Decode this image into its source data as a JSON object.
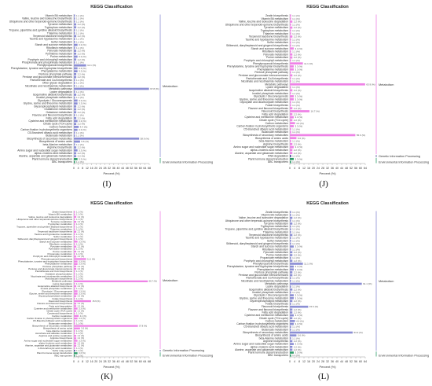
{
  "panels": [
    {
      "id": "I",
      "label": "(I)",
      "title": "KEGG Classification",
      "xlabel": "Percent (%)",
      "xlim": [
        0,
        68
      ],
      "xticks": [
        0,
        4,
        8,
        12,
        16,
        20,
        24,
        28,
        32,
        36,
        40,
        44,
        48,
        52,
        56,
        60,
        64,
        68
      ],
      "bar_color_primary": "#8c8fd4",
      "bar_color_secondary": "#2f9d6a",
      "groups": [
        {
          "name": "Metabolism",
          "color": "#8c8fd4",
          "categories": [
            "Vitamin B6 metabolism",
            "Valine, leucine and isoleucine biosynthesis",
            "Ubiquinone and other terpenoid-quinone biosynthesis",
            "Tyrosine metabolism",
            "Tryptophan metabolism",
            "Tropane, piperidine and pyridine alkaloid biosynthesis",
            "Thiamine metabolism",
            "Terpenoid backbone biosynthesis",
            "Taurine and hypotaurine metabolism",
            "Sulfur metabolism",
            "Starch and sucrose metabolism",
            "Riboflavin metabolism",
            "Pyruvate metabolism",
            "Pyrimidine metabolism",
            "Purine metabolism",
            "Porphyrin and chlorophyll metabolism",
            "Phosphonate and phosphinate metabolism",
            "Phenylpropanoid biosynthesis",
            "Phenylalanine, tyrosine and tryptophan biosynthesis",
            "Phenylalanine metabolism",
            "Pentose phosphate pathway",
            "Pentose and glucuronate interconversions",
            "Pantothenate and CoA biosynthesis",
            "Other glycan degradation",
            "Nicotinate and nicotinamide metabolism",
            "Metabolic pathways",
            "Lysine degradation",
            "Isoquinoline alkaloid biosynthesis",
            "Inositol phosphate metabolism",
            "Glycolysis / Gluconeogenesis",
            "Glycine, serine and threonine metabolism",
            "Glycerophospholipid metabolism",
            "Glutathione metabolism",
            "Galactose metabolism",
            "Flavone and flavonol biosynthesis",
            "Fatty acid degradation",
            "Cysteine and methionine metabolism",
            "Citrate cycle (TCA cycle)",
            "Carbon metabolism",
            "Carbon fixation in photosynthetic organisms",
            "C5-Branched dibasic acid metabolism",
            "Butanoate metabolism",
            "Biosynthesis of secondary metabolites",
            "Biosynthesis of amino acids",
            "beta-Alanine metabolism",
            "Arginine biosynthesis",
            "Amino sugar and nucleotide sugar metabolism",
            "alpha-Linolenic acid metabolism",
            "Alanine, aspartate and glutamate metabolism"
          ],
          "values": [
            1.1,
            1.1,
            1.1,
            2.2,
            2.2,
            1.1,
            1.1,
            2.2,
            1.1,
            1.1,
            3.3,
            1.1,
            2.2,
            2.2,
            3.3,
            2.2,
            1.1,
            11.1,
            3.3,
            3.3,
            2.2,
            2.2,
            1.1,
            1.1,
            1.1,
            67.8,
            1.1,
            2.2,
            1.1,
            3.3,
            3.3,
            2.2,
            2.2,
            2.2,
            1.1,
            2.2,
            3.3,
            2.2,
            4.4,
            3.3,
            1.1,
            1.1,
            58.9,
            5.6,
            1.1,
            2.2,
            3.3,
            2.2,
            2.2
          ]
        },
        {
          "name": "Environmental Information Processing",
          "color": "#2f9d6a",
          "categories": [
            "Plant hormone signal transduction",
            "ABC transporters"
          ],
          "values": [
            3.3,
            1.1
          ]
        }
      ]
    },
    {
      "id": "J",
      "label": "(J)",
      "title": "KEGG Classification",
      "xlabel": "Percent (%)",
      "xlim": [
        0,
        64
      ],
      "xticks": [
        0,
        4,
        8,
        12,
        16,
        20,
        24,
        28,
        32,
        36,
        40,
        44,
        48,
        52,
        56,
        60,
        64
      ],
      "groups": [
        {
          "name": "Metabolism",
          "color": "#ee82e6",
          "categories": [
            "Zeatin biosynthesis",
            "Vitamin B6 metabolism",
            "Valine, leucine and isoleucine degradation",
            "Ubiquinone and other terpenoid-quinone biosynthesis",
            "Tyrosine metabolism",
            "Tryptophan metabolism",
            "Thiamine metabolism",
            "Terpenoid backbone biosynthesis",
            "Taurine and hypotaurine metabolism",
            "Sulfur metabolism",
            "Stilbenoid, diarylheptanoid and gingerol biosynthesis",
            "Starch and sucrose metabolism",
            "Riboflavin metabolism",
            "Pyruvate metabolism",
            "Purine metabolism",
            "Porphyrin and chlorophyll metabolism",
            "Phenylpropanoid biosynthesis",
            "Phenylalanine, tyrosine and tryptophan biosynthesis",
            "Phenylalanine metabolism",
            "Pentose phosphate pathway",
            "Pentose and glucuronate interconversions",
            "Pantothenate and CoA biosynthesis",
            "Nicotinate and nicotinamide metabolism",
            "Metabolic pathways",
            "Lysine degradation",
            "Isoquinoline alkaloid biosynthesis",
            "Inositol phosphate metabolism",
            "Glycolysis / Gluconeogenesis",
            "Glycine, serine and threonine metabolism",
            "Glyoxylate and dicarboxylate metabolism",
            "Folate biosynthesis",
            "Flavone and flavonol biosynthesis",
            "Flavonoid biosynthesis",
            "Fatty acid degradation",
            "Cysteine and methionine metabolism",
            "Citrate cycle (TCA cycle)",
            "Carbon metabolism",
            "Carbon fixation in photosynthetic organisms",
            "C5-Branched dibasic acid metabolism",
            "Butanoate metabolism",
            "Biosynthesis of secondary metabolites",
            "Biosynthesis of amino acids",
            "beta-Alanine metabolism",
            "Arginine biosynthesis",
            "Amino sugar and nucleotide sugar metabolism",
            "alpha-Linolenic acid metabolism",
            "Alanine, aspartate and glutamate metabolism"
          ],
          "values": [
            1.1,
            1.1,
            2.2,
            1.1,
            2.2,
            1.1,
            1.1,
            2.2,
            1.1,
            1.1,
            1.1,
            3.3,
            1.1,
            2.2,
            2.2,
            1.1,
            11.1,
            3.3,
            3.3,
            1.1,
            2.2,
            1.1,
            1.1,
            63.9,
            1.1,
            2.2,
            1.1,
            3.3,
            3.3,
            1.1,
            1.1,
            2.2,
            16.7,
            2.2,
            3.3,
            2.2,
            4.4,
            3.3,
            1.1,
            1.1,
            55.6,
            5.6,
            1.1,
            2.2,
            3.3,
            2.2,
            2.2
          ]
        },
        {
          "name": "Genetic Information Processing",
          "color": "#4a4a9a",
          "categories": [
            "RNA degradation"
          ],
          "values": [
            1.1
          ]
        },
        {
          "name": "Environmental Information Processing",
          "color": "#2f9d6a",
          "categories": [
            "Plant hormone signal transduction",
            "ABC transporters"
          ],
          "values": [
            3.3,
            1.1
          ]
        }
      ]
    },
    {
      "id": "K",
      "label": "(K)",
      "title": "KEGG Classification",
      "xlabel": "Percent (%)",
      "xlim": [
        0,
        68
      ],
      "xticks": [
        0,
        4,
        8,
        12,
        16,
        20,
        24,
        28,
        32,
        36,
        40,
        44,
        48,
        52,
        56,
        60,
        64,
        68
      ],
      "groups": [
        {
          "name": "Metabolism",
          "color": "#ee82e6",
          "categories": [
            "Zeatin biosynthesis",
            "Vitamin B6 metabolism",
            "Valine, leucine and isoleucine degradation",
            "Ubiquinone and other terpenoid-quinone biosynthesis",
            "Tyrosine metabolism",
            "Tryptophan metabolism",
            "Tropane, piperidine and pyridine alkaloid biosynthesis",
            "Thiamine metabolism",
            "Terpenoid backbone biosynthesis",
            "Taurine and hypotaurine metabolism",
            "Sulfur metabolism",
            "Stilbenoid, diarylheptanoid and gingerol biosynthesis",
            "Starch and sucrose metabolism",
            "Riboflavin metabolism",
            "Pyruvate metabolism",
            "Pyrimidine metabolism",
            "Purine metabolism",
            "Propanoate metabolism",
            "Porphyrin and chlorophyll metabolism",
            "Phenylpropanoid biosynthesis",
            "Phenylalanine, tyrosine and tryptophan biosynthesis",
            "Phenylalanine metabolism",
            "Pentose phosphate pathway",
            "Pentose and glucuronate interconversions",
            "Pantothenate and CoA biosynthesis",
            "Oxidative phosphorylation",
            "Nicotinate and nicotinamide metabolism",
            "Monobactam biosynthesis",
            "Metabolic pathways",
            "Lysine degradation",
            "Isoquinoline alkaloid biosynthesis",
            "Inositol phosphate metabolism",
            "Glycolysis / Gluconeogenesis",
            "Glycine, serine and threonine metabolism",
            "Glycerophospholipid metabolism",
            "Folate biosynthesis",
            "Flavonoid biosynthesis",
            "Flavone and flavonol biosynthesis",
            "Fatty acid degradation",
            "Cysteine and methionine metabolism",
            "Citrate cycle (TCA cycle)",
            "Carotenoid biosynthesis",
            "Carbon metabolism",
            "Carbon fixation in photosynthetic organisms",
            "C5-Branched dibasic acid metabolism",
            "Butanoate metabolism",
            "Biosynthesis of secondary metabolites",
            "Biosynthesis of amino acids",
            "beta-Alanine metabolism",
            "Ascorbate and aldarate metabolism",
            "Arginine and proline metabolism",
            "Arginine biosynthesis",
            "Amino sugar and nucleotide sugar metabolism",
            "alpha-Linolenic acid metabolism",
            "Alanine, aspartate and glutamate metabolism",
            "2-Oxocarboxylic acid metabolism"
          ],
          "values": [
            1.1,
            1.1,
            2.2,
            1.1,
            2.2,
            1.1,
            1.1,
            1.1,
            2.2,
            1.1,
            1.1,
            1.1,
            3.3,
            1.1,
            2.2,
            1.1,
            2.2,
            1.1,
            2.2,
            11.1,
            3.3,
            3.3,
            2.2,
            2.2,
            1.1,
            1.1,
            1.1,
            1.1,
            66.7,
            1.1,
            2.2,
            1.1,
            3.3,
            3.3,
            2.2,
            1.1,
            15.6,
            2.2,
            2.2,
            3.3,
            2.2,
            1.1,
            4.4,
            3.3,
            1.1,
            1.1,
            57.8,
            5.6,
            1.1,
            1.1,
            2.2,
            2.2,
            3.3,
            2.2,
            2.2,
            1.1
          ]
        },
        {
          "name": "Genetic Information Processing",
          "color": "#4a4a9a",
          "categories": [
            "Sulfur relay system"
          ],
          "values": [
            1.1
          ]
        },
        {
          "name": "Environmental Information Processing",
          "color": "#2f9d6a",
          "categories": [
            "Plant hormone signal transduction",
            "ABC transporters"
          ],
          "values": [
            3.3,
            1.1
          ]
        }
      ]
    },
    {
      "id": "L",
      "label": "(L)",
      "title": "KEGG Classification",
      "xlabel": "Percent (%)",
      "xlim": [
        0,
        64
      ],
      "xticks": [
        0,
        4,
        8,
        12,
        16,
        20,
        24,
        28,
        32,
        36,
        40,
        44,
        48,
        52,
        56,
        60,
        64
      ],
      "groups": [
        {
          "name": "Metabolism",
          "color": "#8c8fd4",
          "categories": [
            "Zeatin biosynthesis",
            "Vitamin B6 metabolism",
            "Valine, leucine and isoleucine degradation",
            "Ubiquinone and other terpenoid-quinone biosynthesis",
            "Tyrosine metabolism",
            "Tryptophan metabolism",
            "Tropane, piperidine and pyridine alkaloid biosynthesis",
            "Thiamine metabolism",
            "Terpenoid backbone biosynthesis",
            "Taurine and hypotaurine metabolism",
            "Sulfur metabolism",
            "Stilbenoid, diarylheptanoid and gingerol biosynthesis",
            "Starch and sucrose metabolism",
            "Riboflavin metabolism",
            "Pyruvate metabolism",
            "Purine metabolism",
            "Propanoate metabolism",
            "Porphyrin and chlorophyll metabolism",
            "Phenylpropanoid biosynthesis",
            "Phenylalanine, tyrosine and tryptophan biosynthesis",
            "Phenylalanine metabolism",
            "Pentose phosphate pathway",
            "Pentose and glucuronate interconversions",
            "Pantothenate and CoA biosynthesis",
            "Nicotinate and nicotinamide metabolism",
            "Metabolic pathways",
            "Lysine degradation",
            "Isoquinoline alkaloid biosynthesis",
            "Inositol phosphate metabolism",
            "Glycolysis / Gluconeogenesis",
            "Glycine, serine and threonine metabolism",
            "Glycerophospholipid metabolism",
            "Folate biosynthesis",
            "Flavonoid biosynthesis",
            "Flavone and flavonol biosynthesis",
            "Fatty acid degradation",
            "Cysteine and methionine metabolism",
            "Citrate cycle (TCA cycle)",
            "Carbon metabolism",
            "Carbon fixation in photosynthetic organisms",
            "C5-Branched dibasic acid metabolism",
            "Butanoate metabolism",
            "Biosynthesis of secondary metabolites",
            "Biosynthesis of amino acids",
            "beta-Alanine metabolism",
            "Arginine biosynthesis",
            "Amino sugar and nucleotide sugar metabolism",
            "alpha-Linolenic acid metabolism",
            "Alanine, aspartate and glutamate metabolism"
          ],
          "values": [
            1.1,
            1.1,
            2.2,
            1.1,
            2.2,
            1.1,
            1.1,
            1.1,
            2.2,
            1.1,
            1.1,
            1.1,
            3.3,
            1.1,
            2.2,
            2.2,
            1.1,
            2.2,
            11.1,
            3.3,
            3.3,
            2.2,
            2.2,
            1.1,
            1.1,
            61.1,
            1.1,
            2.2,
            1.1,
            3.3,
            3.3,
            2.2,
            1.1,
            15.6,
            2.2,
            2.2,
            3.3,
            2.2,
            4.4,
            3.3,
            1.1,
            1.1,
            53.3,
            5.6,
            1.1,
            2.2,
            3.3,
            2.2,
            2.2
          ]
        },
        {
          "name": "Environmental Information Processing",
          "color": "#2f9d6a",
          "categories": [
            "Plant hormone signal transduction",
            "ABC transporters"
          ],
          "values": [
            3.3,
            1.1
          ]
        }
      ]
    }
  ]
}
